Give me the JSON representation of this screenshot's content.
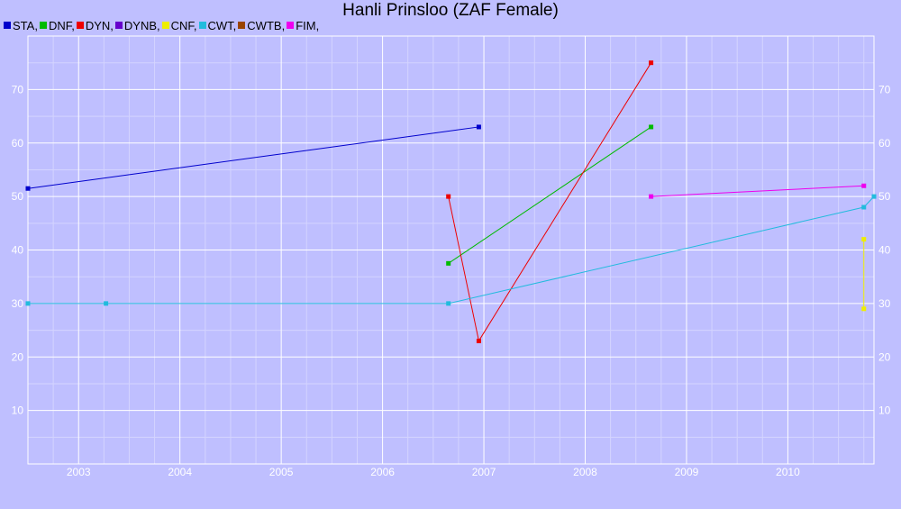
{
  "chart_data": {
    "type": "line",
    "title": "Hanli Prinsloo (ZAF Female)",
    "xlabel": "",
    "ylabel": "",
    "xlim": [
      2002.5,
      2010.85
    ],
    "ylim": [
      0,
      80
    ],
    "x_ticks": [
      2003,
      2004,
      2005,
      2006,
      2007,
      2008,
      2009,
      2010
    ],
    "y_ticks": [
      10,
      20,
      30,
      40,
      50,
      60,
      70
    ],
    "grid": true,
    "legend_position": "top-left",
    "background_color": "#bfbfff",
    "series": [
      {
        "name": "STA",
        "color": "#0000cc",
        "points": [
          [
            2002.5,
            51.5
          ],
          [
            2006.95,
            63
          ]
        ]
      },
      {
        "name": "DNF",
        "color": "#00bb00",
        "points": [
          [
            2006.65,
            37.5
          ],
          [
            2008.65,
            63
          ]
        ]
      },
      {
        "name": "DYN",
        "color": "#ee0000",
        "points": [
          [
            2006.65,
            50
          ],
          [
            2006.95,
            23
          ],
          [
            2008.65,
            75
          ]
        ]
      },
      {
        "name": "DYNB",
        "color": "#6600cc",
        "points": []
      },
      {
        "name": "CNF",
        "color": "#eeee00",
        "points": [
          [
            2010.75,
            42
          ],
          [
            2010.75,
            29
          ]
        ]
      },
      {
        "name": "CWT",
        "color": "#22bbdd",
        "points": [
          [
            2002.5,
            30
          ],
          [
            2003.27,
            30
          ],
          [
            2006.65,
            30
          ],
          [
            2010.75,
            48
          ],
          [
            2010.85,
            50
          ]
        ]
      },
      {
        "name": "CWTB",
        "color": "#994400",
        "points": []
      },
      {
        "name": "FIM",
        "color": "#ee00ee",
        "points": [
          [
            2008.65,
            50
          ],
          [
            2010.75,
            52
          ]
        ]
      }
    ]
  }
}
